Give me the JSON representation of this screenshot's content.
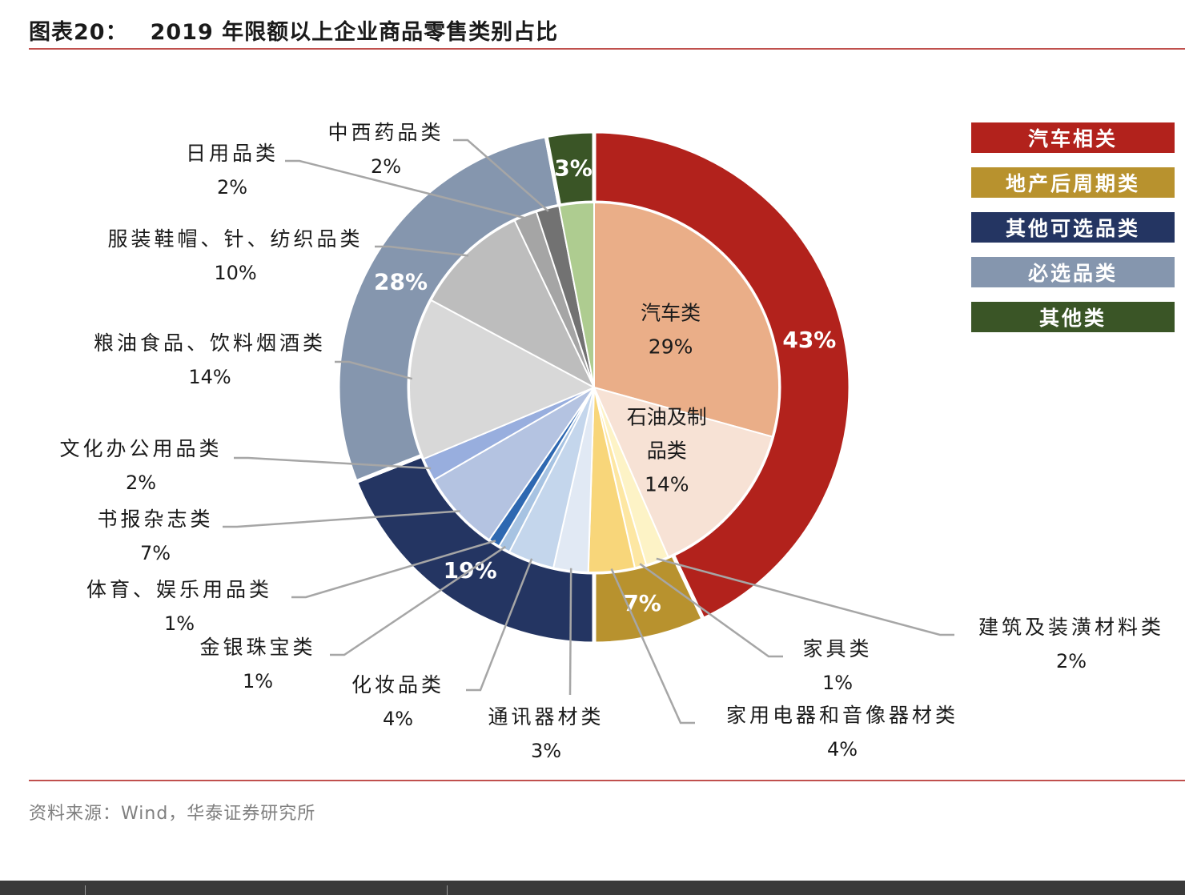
{
  "header": {
    "figure_label": "图表20：",
    "title": "2019 年限额以上企业商品零售类别占比"
  },
  "source": "资料来源：Wind，华泰证券研究所",
  "chart_data": {
    "type": "pie",
    "outer": [
      {
        "name": "汽车相关",
        "value": 43,
        "label": "43%",
        "color": "#b2221c"
      },
      {
        "name": "地产后周期类",
        "value": 7,
        "label": "7%",
        "color": "#b8922e"
      },
      {
        "name": "其他可选品类",
        "value": 19,
        "label": "19%",
        "color": "#243562"
      },
      {
        "name": "必选品类",
        "value": 28,
        "label": "28%",
        "color": "#8596ae"
      },
      {
        "name": "其他类",
        "value": 3,
        "label": "3%",
        "color": "#3a5526"
      }
    ],
    "inner": [
      {
        "name": "汽车类",
        "value": 29,
        "label": "29%",
        "color": "#eaae88"
      },
      {
        "name": "石油及制品类",
        "value": 14,
        "label": "14%",
        "color": "#f7e2d5"
      },
      {
        "name": "建筑及装潢材料类",
        "value": 2,
        "label": "2%",
        "color": "#fdf3c6"
      },
      {
        "name": "家具类",
        "value": 1,
        "label": "1%",
        "color": "#fde7a3"
      },
      {
        "name": "家用电器和音像器材类",
        "value": 4,
        "label": "4%",
        "color": "#f8d67a"
      },
      {
        "name": "通讯器材类",
        "value": 3,
        "label": "3%",
        "color": "#e1e9f4"
      },
      {
        "name": "化妆品类",
        "value": 4,
        "label": "4%",
        "color": "#c4d6ec"
      },
      {
        "name": "金银珠宝类",
        "value": 1,
        "label": "1%",
        "color": "#a7c3e2"
      },
      {
        "name": "体育、娱乐用品类",
        "value": 1,
        "label": "1%",
        "color": "#2e68b1"
      },
      {
        "name": "书报杂志类",
        "value": 7,
        "label": "7%",
        "color": "#b4c3e1"
      },
      {
        "name": "文化办公用品类",
        "value": 2,
        "label": "2%",
        "color": "#98aede"
      },
      {
        "name": "粮油食品、饮料烟酒类",
        "value": 14,
        "label": "14%",
        "color": "#d8d8d8"
      },
      {
        "name": "服装鞋帽、针、纺织品类",
        "value": 10,
        "label": "10%",
        "color": "#bdbdbd"
      },
      {
        "name": "日用品类",
        "value": 2,
        "label": "2%",
        "color": "#a5a5a5"
      },
      {
        "name": "中西药品类",
        "value": 2,
        "label": "2%",
        "color": "#727272"
      },
      {
        "name": "其他",
        "value": 3,
        "label": "",
        "color": "#aecc90"
      }
    ],
    "inner_label_lines": {
      "汽车类": [
        "汽车类"
      ],
      "石油及制品类": [
        "石油及制",
        "品类"
      ]
    },
    "legend": [
      "汽车相关",
      "地产后周期类",
      "其他可选品类",
      "必选品类",
      "其他类"
    ]
  }
}
